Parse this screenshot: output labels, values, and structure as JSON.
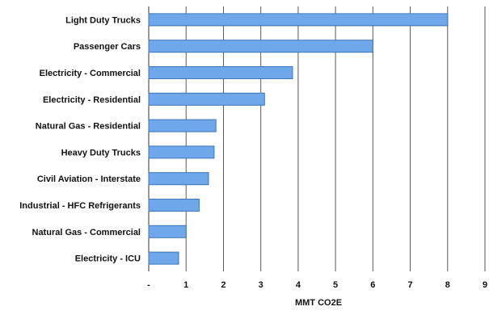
{
  "chart_data": {
    "type": "bar",
    "orientation": "horizontal",
    "categories": [
      "Light Duty Trucks",
      "Passenger Cars",
      "Electricity - Commercial",
      "Electricity - Residential",
      "Natural Gas - Residential",
      "Heavy Duty Trucks",
      "Civil Aviation - Interstate",
      "Industrial - HFC Refrigerants",
      "Natural Gas - Commercial",
      "Electricity - ICU"
    ],
    "values": [
      8,
      6,
      3.85,
      3.1,
      1.8,
      1.75,
      1.6,
      1.35,
      1.0,
      0.8
    ],
    "xlabel": "MMT CO2E",
    "ylabel": "",
    "title": "",
    "xlim": [
      0,
      9
    ],
    "xticks": [
      "-",
      "1",
      "2",
      "3",
      "4",
      "5",
      "6",
      "7",
      "8",
      "9"
    ],
    "grid": "vertical",
    "legend": "none",
    "colors": {
      "bar_fill": "#6fa8ea",
      "bar_stroke": "#3d74b8",
      "grid": "#5a5a5a",
      "axis": "#333333"
    }
  }
}
